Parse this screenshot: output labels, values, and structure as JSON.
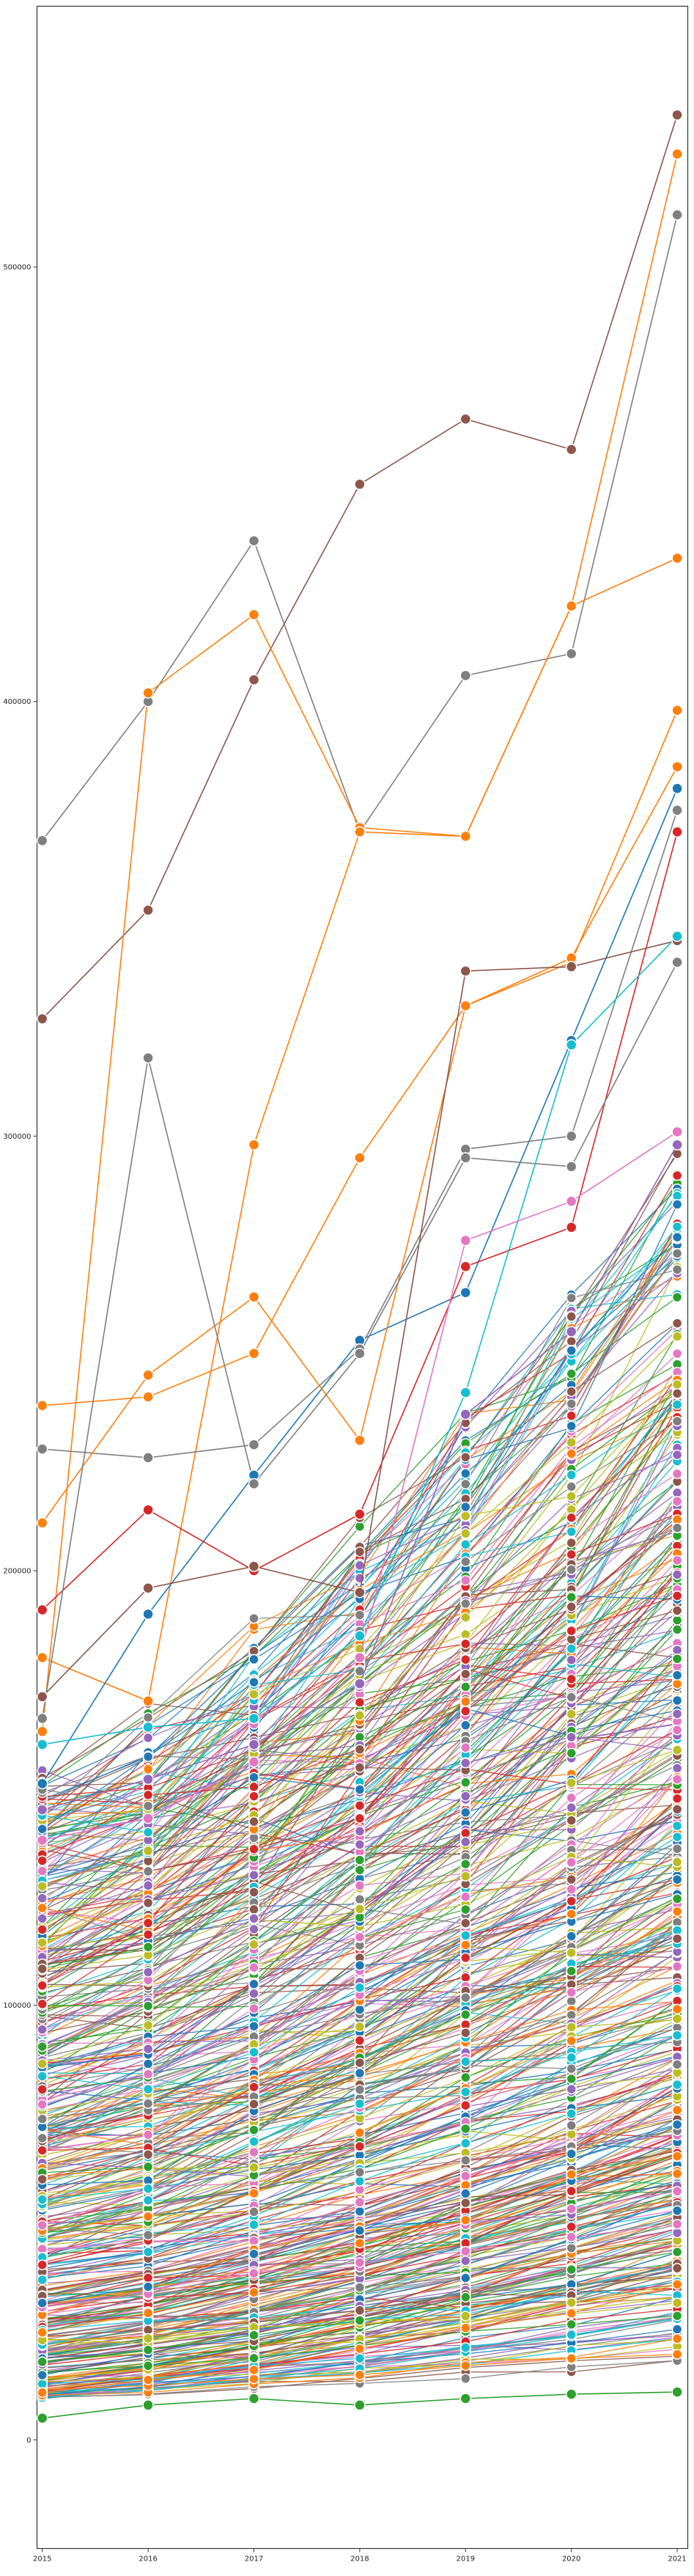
{
  "chart_data": {
    "type": "line",
    "title": "",
    "xlabel": "",
    "ylabel": "",
    "x": [
      2015,
      2016,
      2017,
      2018,
      2019,
      2020,
      2021
    ],
    "x_tick_labels": [
      "2015",
      "2016",
      "2017",
      "2018",
      "2019",
      "2020",
      "2021"
    ],
    "y_tick_labels": [
      "0",
      "100000",
      "200000",
      "300000",
      "400000",
      "500000"
    ],
    "y_ticks": [
      0,
      100000,
      200000,
      300000,
      400000,
      500000
    ],
    "xlim": [
      2014.95,
      2021.1
    ],
    "ylim": [
      -25000,
      560000
    ],
    "grid": false,
    "legend": "none",
    "marker": "circle-with-white-edge",
    "palette": [
      "#1f77b4",
      "#ff7f0e",
      "#2ca02c",
      "#d62728",
      "#9467bd",
      "#8c564b",
      "#e377c2",
      "#7f7f7f",
      "#bcbd22",
      "#17becf"
    ],
    "highlighted_series": [
      {
        "color": "#8c564b",
        "values": [
          327000,
          352000,
          405000,
          450000,
          465000,
          458000,
          535000
        ]
      },
      {
        "color": "#7f7f7f",
        "values": [
          368000,
          400000,
          437000,
          370000,
          406000,
          411000,
          512000
        ]
      },
      {
        "color": "#ff7f0e",
        "values": [
          163000,
          402000,
          420000,
          371000,
          369000,
          422000,
          526000
        ]
      },
      {
        "color": "#ff7f0e",
        "values": [
          180000,
          170000,
          298000,
          370000,
          369000,
          422000,
          433000
        ]
      },
      {
        "color": "#ff7f0e",
        "values": [
          238000,
          240000,
          250000,
          295000,
          330000,
          340000,
          398000
        ]
      },
      {
        "color": "#1f77b4",
        "values": [
          151000,
          190000,
          222000,
          253000,
          264000,
          322000,
          380000
        ]
      },
      {
        "color": "#7f7f7f",
        "values": [
          228000,
          226000,
          229000,
          251000,
          297000,
          300000,
          375000
        ]
      },
      {
        "color": "#ff7f0e",
        "values": [
          211000,
          245000,
          263000,
          230000,
          330000,
          341000,
          385000
        ]
      },
      {
        "color": "#d62728",
        "values": [
          191000,
          214000,
          200000,
          213000,
          270000,
          279000,
          370000
        ]
      },
      {
        "color": "#8c564b",
        "values": [
          171000,
          196000,
          201000,
          195000,
          338000,
          339000,
          345000
        ]
      },
      {
        "color": "#7f7f7f",
        "values": [
          166000,
          318000,
          220000,
          250000,
          295000,
          293000,
          340000
        ]
      },
      {
        "color": "#17becf",
        "values": [
          160000,
          164000,
          166000,
          185000,
          241000,
          321000,
          346000
        ]
      },
      {
        "color": "#e377c2",
        "values": [
          138000,
          143000,
          156000,
          180000,
          276000,
          285000,
          301000
        ]
      },
      {
        "color": "#9467bd",
        "values": [
          145000,
          152000,
          160000,
          174000,
          236000,
          255000,
          298000
        ]
      },
      {
        "color": "#2ca02c",
        "values": [
          5000,
          8000,
          9500,
          8000,
          9500,
          10500,
          11000
        ]
      }
    ],
    "bulk_series_count": 500,
    "bulk_series_start_range": [
      10000,
      150000
    ],
    "bulk_series_end_range": [
      30000,
      280000
    ]
  }
}
